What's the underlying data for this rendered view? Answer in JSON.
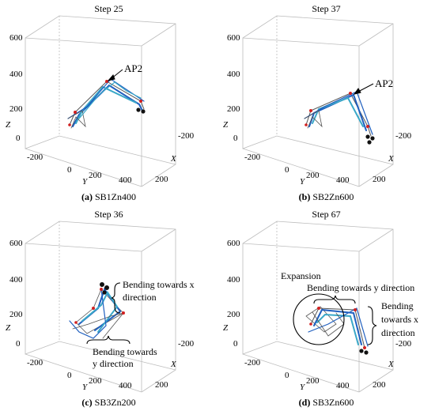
{
  "panels": [
    {
      "title": "Step 25",
      "caption_letter": "(a)",
      "caption_text": "SB1Zn400",
      "annotations": [
        "AP2"
      ],
      "z_ticks": [
        "600",
        "400",
        "200",
        "0"
      ],
      "y_ticks": [
        "-200",
        "0",
        "200",
        "400"
      ],
      "x_ticks": [
        "-200",
        "0",
        "200"
      ],
      "axis_labels": {
        "x": "X",
        "y": "Y",
        "z": "Z"
      }
    },
    {
      "title": "Step 37",
      "caption_letter": "(b)",
      "caption_text": "SB2Zn600",
      "annotations": [
        "AP2"
      ],
      "z_ticks": [
        "600",
        "400",
        "200",
        "0"
      ],
      "y_ticks": [
        "-200",
        "0",
        "200",
        "400"
      ],
      "x_ticks": [
        "-200",
        "0",
        "200"
      ],
      "axis_labels": {
        "x": "X",
        "y": "Y",
        "z": "Z"
      }
    },
    {
      "title": "Step 36",
      "caption_letter": "(c)",
      "caption_text": "SB3Zn200",
      "annotations": [
        "Bending towards x",
        "direction",
        "Bending towards",
        "y direction"
      ],
      "z_ticks": [
        "600",
        "400",
        "200",
        "0"
      ],
      "y_ticks": [
        "-200",
        "0",
        "200",
        "400"
      ],
      "x_ticks": [
        "-200",
        "0",
        "200"
      ],
      "axis_labels": {
        "x": "X",
        "y": "Y",
        "z": "Z"
      }
    },
    {
      "title": "Step 67",
      "caption_letter": "(d)",
      "caption_text": "SB3Zn600",
      "annotations": [
        "Expansion",
        "Bending towards y direction",
        "Bending",
        "towards  x",
        "direction"
      ],
      "z_ticks": [
        "600",
        "400",
        "200",
        "0"
      ],
      "y_ticks": [
        "-200",
        "0",
        "200",
        "400"
      ],
      "x_ticks": [
        "-200",
        "0",
        "200"
      ],
      "axis_labels": {
        "x": "X",
        "y": "Y",
        "z": "Z"
      }
    }
  ],
  "colors": {
    "box": "#bdbdbd",
    "struct_blue": "#1f5fbf",
    "struct_cyan": "#3aa8c8",
    "struct_gray": "#555555",
    "node_red": "#d22020",
    "node_black": "#111111"
  }
}
